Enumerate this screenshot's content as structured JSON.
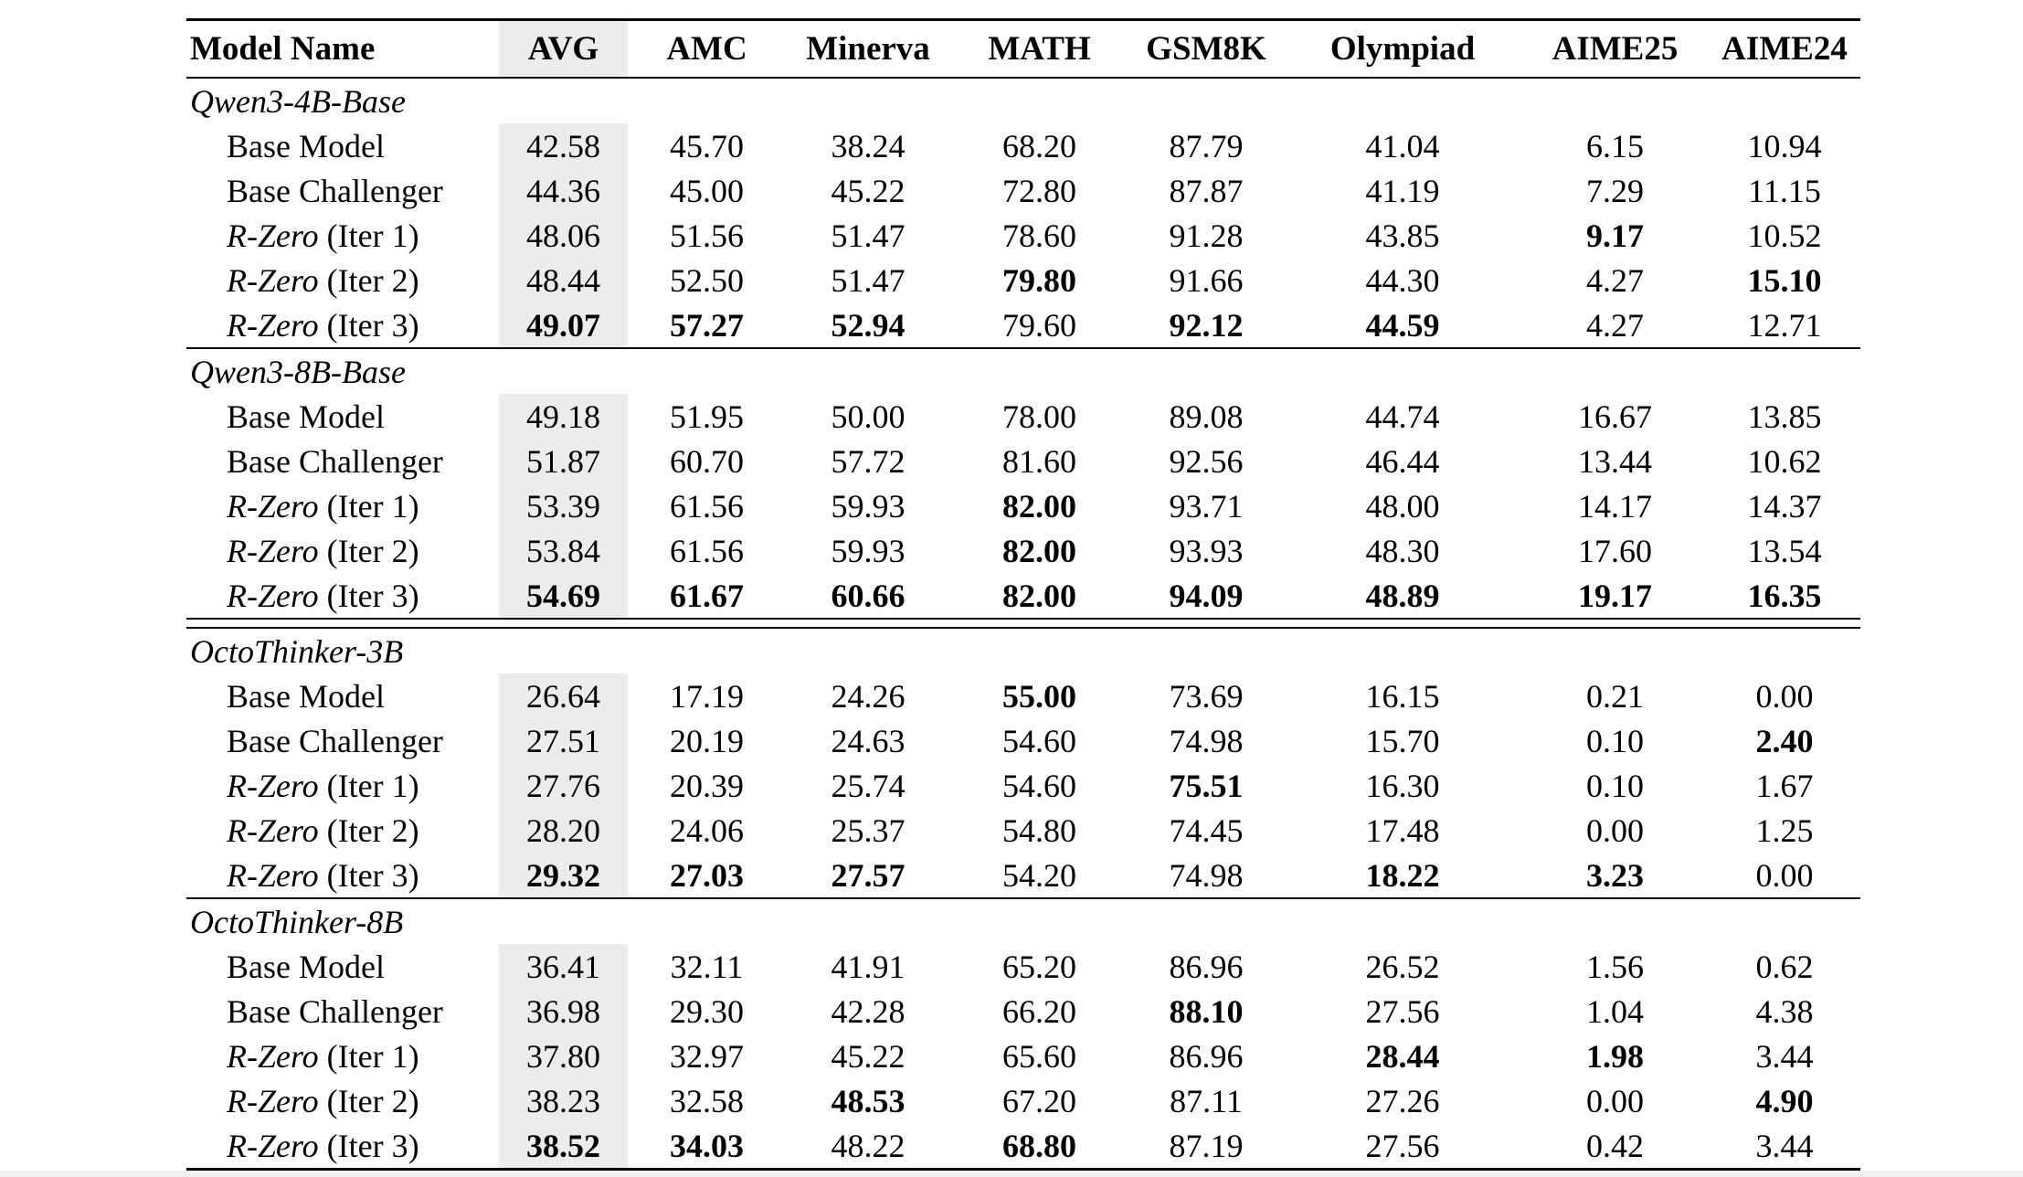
{
  "colors": {
    "avg_highlight": "#ececec",
    "rule": "#000000",
    "text": "#000000",
    "page_bottom_strip": "#f1f1f1"
  },
  "table": {
    "columns": [
      "Model Name",
      "AVG",
      "AMC",
      "Minerva",
      "MATH",
      "GSM8K",
      "Olympiad",
      "AIME25",
      "AIME24"
    ],
    "groups": [
      {
        "name": "Qwen3-4B-Base",
        "separator_after": "single",
        "rows": [
          {
            "label_italic": "",
            "label_plain": "Base Model",
            "cells": [
              {
                "v": "42.58"
              },
              {
                "v": "45.70"
              },
              {
                "v": "38.24"
              },
              {
                "v": "68.20"
              },
              {
                "v": "87.79"
              },
              {
                "v": "41.04"
              },
              {
                "v": "6.15"
              },
              {
                "v": "10.94"
              }
            ]
          },
          {
            "label_italic": "",
            "label_plain": "Base Challenger",
            "cells": [
              {
                "v": "44.36"
              },
              {
                "v": "45.00"
              },
              {
                "v": "45.22"
              },
              {
                "v": "72.80"
              },
              {
                "v": "87.87"
              },
              {
                "v": "41.19"
              },
              {
                "v": "7.29"
              },
              {
                "v": "11.15"
              }
            ]
          },
          {
            "label_italic": "R-Zero",
            "label_plain": " (Iter 1)",
            "cells": [
              {
                "v": "48.06"
              },
              {
                "v": "51.56"
              },
              {
                "v": "51.47"
              },
              {
                "v": "78.60"
              },
              {
                "v": "91.28"
              },
              {
                "v": "43.85"
              },
              {
                "v": "9.17",
                "b": true
              },
              {
                "v": "10.52"
              }
            ]
          },
          {
            "label_italic": "R-Zero",
            "label_plain": " (Iter 2)",
            "cells": [
              {
                "v": "48.44"
              },
              {
                "v": "52.50"
              },
              {
                "v": "51.47"
              },
              {
                "v": "79.80",
                "b": true
              },
              {
                "v": "91.66"
              },
              {
                "v": "44.30"
              },
              {
                "v": "4.27"
              },
              {
                "v": "15.10",
                "b": true
              }
            ]
          },
          {
            "label_italic": "R-Zero",
            "label_plain": " (Iter 3)",
            "cells": [
              {
                "v": "49.07",
                "b": true
              },
              {
                "v": "57.27",
                "b": true
              },
              {
                "v": "52.94",
                "b": true
              },
              {
                "v": "79.60"
              },
              {
                "v": "92.12",
                "b": true
              },
              {
                "v": "44.59",
                "b": true
              },
              {
                "v": "4.27"
              },
              {
                "v": "12.71"
              }
            ]
          }
        ]
      },
      {
        "name": "Qwen3-8B-Base",
        "separator_after": "double",
        "rows": [
          {
            "label_italic": "",
            "label_plain": "Base Model",
            "cells": [
              {
                "v": "49.18"
              },
              {
                "v": "51.95"
              },
              {
                "v": "50.00"
              },
              {
                "v": "78.00"
              },
              {
                "v": "89.08"
              },
              {
                "v": "44.74"
              },
              {
                "v": "16.67"
              },
              {
                "v": "13.85"
              }
            ]
          },
          {
            "label_italic": "",
            "label_plain": "Base Challenger",
            "cells": [
              {
                "v": "51.87"
              },
              {
                "v": "60.70"
              },
              {
                "v": "57.72"
              },
              {
                "v": "81.60"
              },
              {
                "v": "92.56"
              },
              {
                "v": "46.44"
              },
              {
                "v": "13.44"
              },
              {
                "v": "10.62"
              }
            ]
          },
          {
            "label_italic": "R-Zero",
            "label_plain": " (Iter 1)",
            "cells": [
              {
                "v": "53.39"
              },
              {
                "v": "61.56"
              },
              {
                "v": "59.93"
              },
              {
                "v": "82.00",
                "b": true
              },
              {
                "v": "93.71"
              },
              {
                "v": "48.00"
              },
              {
                "v": "14.17"
              },
              {
                "v": "14.37"
              }
            ]
          },
          {
            "label_italic": "R-Zero",
            "label_plain": " (Iter 2)",
            "cells": [
              {
                "v": "53.84"
              },
              {
                "v": "61.56"
              },
              {
                "v": "59.93"
              },
              {
                "v": "82.00",
                "b": true
              },
              {
                "v": "93.93"
              },
              {
                "v": "48.30"
              },
              {
                "v": "17.60"
              },
              {
                "v": "13.54"
              }
            ]
          },
          {
            "label_italic": "R-Zero",
            "label_plain": " (Iter 3)",
            "cells": [
              {
                "v": "54.69",
                "b": true
              },
              {
                "v": "61.67",
                "b": true
              },
              {
                "v": "60.66",
                "b": true
              },
              {
                "v": "82.00",
                "b": true
              },
              {
                "v": "94.09",
                "b": true
              },
              {
                "v": "48.89",
                "b": true
              },
              {
                "v": "19.17",
                "b": true
              },
              {
                "v": "16.35",
                "b": true
              }
            ]
          }
        ]
      },
      {
        "name": "OctoThinker-3B",
        "separator_after": "single",
        "rows": [
          {
            "label_italic": "",
            "label_plain": "Base Model",
            "cells": [
              {
                "v": "26.64"
              },
              {
                "v": "17.19"
              },
              {
                "v": "24.26"
              },
              {
                "v": "55.00",
                "b": true
              },
              {
                "v": "73.69"
              },
              {
                "v": "16.15"
              },
              {
                "v": "0.21"
              },
              {
                "v": "0.00"
              }
            ]
          },
          {
            "label_italic": "",
            "label_plain": "Base Challenger",
            "cells": [
              {
                "v": "27.51"
              },
              {
                "v": "20.19"
              },
              {
                "v": "24.63"
              },
              {
                "v": "54.60"
              },
              {
                "v": "74.98"
              },
              {
                "v": "15.70"
              },
              {
                "v": "0.10"
              },
              {
                "v": "2.40",
                "b": true
              }
            ]
          },
          {
            "label_italic": "R-Zero",
            "label_plain": " (Iter 1)",
            "cells": [
              {
                "v": "27.76"
              },
              {
                "v": "20.39"
              },
              {
                "v": "25.74"
              },
              {
                "v": "54.60"
              },
              {
                "v": "75.51",
                "b": true
              },
              {
                "v": "16.30"
              },
              {
                "v": "0.10"
              },
              {
                "v": "1.67"
              }
            ]
          },
          {
            "label_italic": "R-Zero",
            "label_plain": " (Iter 2)",
            "cells": [
              {
                "v": "28.20"
              },
              {
                "v": "24.06"
              },
              {
                "v": "25.37"
              },
              {
                "v": "54.80"
              },
              {
                "v": "74.45"
              },
              {
                "v": "17.48"
              },
              {
                "v": "0.00"
              },
              {
                "v": "1.25"
              }
            ]
          },
          {
            "label_italic": "R-Zero",
            "label_plain": " (Iter 3)",
            "cells": [
              {
                "v": "29.32",
                "b": true
              },
              {
                "v": "27.03",
                "b": true
              },
              {
                "v": "27.57",
                "b": true
              },
              {
                "v": "54.20"
              },
              {
                "v": "74.98"
              },
              {
                "v": "18.22",
                "b": true
              },
              {
                "v": "3.23",
                "b": true
              },
              {
                "v": "0.00"
              }
            ]
          }
        ]
      },
      {
        "name": "OctoThinker-8B",
        "separator_after": "bottom",
        "rows": [
          {
            "label_italic": "",
            "label_plain": "Base Model",
            "cells": [
              {
                "v": "36.41"
              },
              {
                "v": "32.11"
              },
              {
                "v": "41.91"
              },
              {
                "v": "65.20"
              },
              {
                "v": "86.96"
              },
              {
                "v": "26.52"
              },
              {
                "v": "1.56"
              },
              {
                "v": "0.62"
              }
            ]
          },
          {
            "label_italic": "",
            "label_plain": "Base Challenger",
            "cells": [
              {
                "v": "36.98"
              },
              {
                "v": "29.30"
              },
              {
                "v": "42.28"
              },
              {
                "v": "66.20"
              },
              {
                "v": "88.10",
                "b": true
              },
              {
                "v": "27.56"
              },
              {
                "v": "1.04"
              },
              {
                "v": "4.38"
              }
            ]
          },
          {
            "label_italic": "R-Zero",
            "label_plain": " (Iter 1)",
            "cells": [
              {
                "v": "37.80"
              },
              {
                "v": "32.97"
              },
              {
                "v": "45.22"
              },
              {
                "v": "65.60"
              },
              {
                "v": "86.96"
              },
              {
                "v": "28.44",
                "b": true
              },
              {
                "v": "1.98",
                "b": true
              },
              {
                "v": "3.44"
              }
            ]
          },
          {
            "label_italic": "R-Zero",
            "label_plain": " (Iter 2)",
            "cells": [
              {
                "v": "38.23"
              },
              {
                "v": "32.58"
              },
              {
                "v": "48.53",
                "b": true
              },
              {
                "v": "67.20"
              },
              {
                "v": "87.11"
              },
              {
                "v": "27.26"
              },
              {
                "v": "0.00"
              },
              {
                "v": "4.90",
                "b": true
              }
            ]
          },
          {
            "label_italic": "R-Zero",
            "label_plain": " (Iter 3)",
            "cells": [
              {
                "v": "38.52",
                "b": true
              },
              {
                "v": "34.03",
                "b": true
              },
              {
                "v": "48.22"
              },
              {
                "v": "68.80",
                "b": true
              },
              {
                "v": "87.19"
              },
              {
                "v": "27.56"
              },
              {
                "v": "0.42"
              },
              {
                "v": "3.44"
              }
            ]
          }
        ]
      }
    ]
  }
}
